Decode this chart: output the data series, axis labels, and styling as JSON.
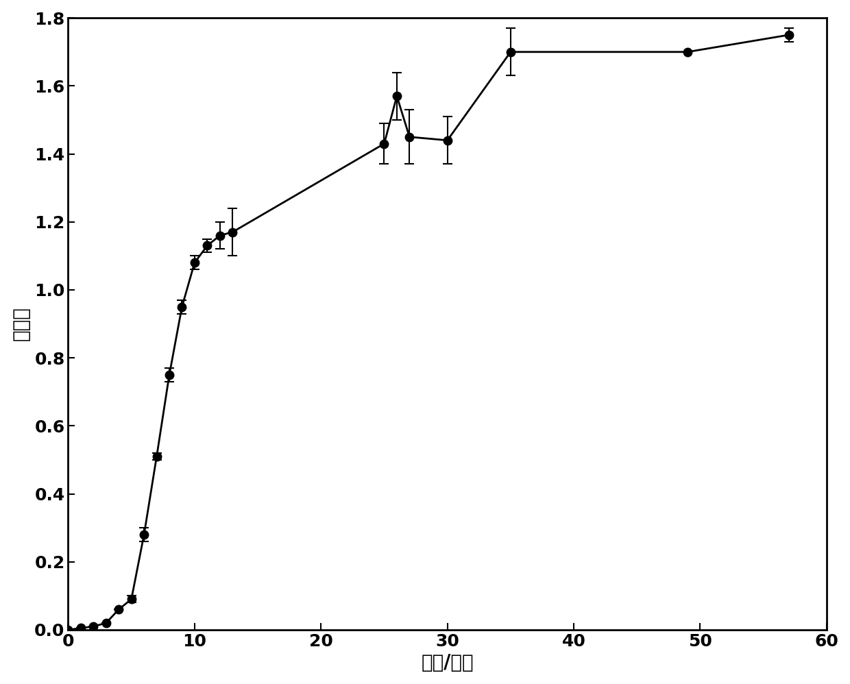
{
  "x": [
    0,
    1,
    2,
    3,
    4,
    5,
    6,
    7,
    8,
    9,
    10,
    11,
    12,
    13,
    25,
    26,
    27,
    30,
    35,
    49,
    57
  ],
  "y": [
    0.0,
    0.005,
    0.01,
    0.02,
    0.06,
    0.09,
    0.28,
    0.51,
    0.75,
    0.95,
    1.08,
    1.13,
    1.16,
    1.17,
    1.43,
    1.57,
    1.45,
    1.44,
    1.7,
    1.7,
    1.75
  ],
  "yerr": [
    0.0,
    0.0,
    0.0,
    0.0,
    0.0,
    0.01,
    0.02,
    0.01,
    0.02,
    0.02,
    0.02,
    0.02,
    0.04,
    0.07,
    0.06,
    0.07,
    0.08,
    0.07,
    0.07,
    0.0,
    0.02
  ],
  "xlabel": "时间/小时",
  "ylabel": "吸光度",
  "xlim": [
    0,
    60
  ],
  "ylim": [
    0,
    1.8
  ],
  "xticks": [
    0,
    10,
    20,
    30,
    40,
    50,
    60
  ],
  "yticks": [
    0,
    0.2,
    0.4,
    0.6,
    0.8,
    1.0,
    1.2,
    1.4,
    1.6,
    1.8
  ],
  "line_color": "#000000",
  "marker_color": "#000000",
  "background_color": "#ffffff",
  "marker_size": 9,
  "linewidth": 2.0,
  "xlabel_fontsize": 20,
  "ylabel_fontsize": 20,
  "tick_fontsize": 18,
  "tick_fontweight": "bold",
  "label_fontweight": "bold"
}
